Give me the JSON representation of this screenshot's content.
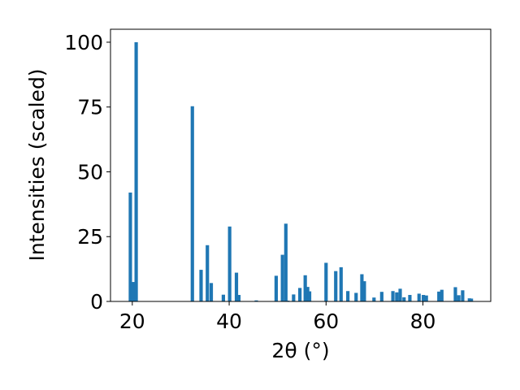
{
  "chart_data": {
    "type": "bar",
    "xlabel": "2θ (°)",
    "ylabel": "Intensities (scaled)",
    "xlim": [
      15.5,
      94
    ],
    "ylim": [
      0,
      105
    ],
    "x_ticks": [
      20,
      40,
      60,
      80
    ],
    "y_ticks": [
      0,
      25,
      50,
      75,
      100
    ],
    "grid": false,
    "bar_color": "#1f77b4",
    "bar_width": 0.7,
    "x": [
      19.6,
      20.2,
      20.8,
      32.4,
      34.2,
      35.5,
      36.3,
      38.8,
      40.1,
      41.5,
      42.0,
      45.6,
      49.7,
      51.0,
      51.7,
      52.1,
      53.3,
      54.6,
      55.7,
      56.2,
      56.6,
      60.0,
      62.0,
      63.1,
      64.5,
      66.2,
      67.4,
      67.9,
      69.9,
      71.5,
      73.8,
      74.6,
      75.3,
      76.1,
      77.3,
      79.2,
      80.1,
      80.7,
      83.3,
      83.9,
      86.7,
      87.4,
      88.2,
      89.6,
      90.0
    ],
    "values": [
      42,
      7.5,
      100,
      75.3,
      12.2,
      21.7,
      7.1,
      2.6,
      28.9,
      11.1,
      2.5,
      0.4,
      9.9,
      18.0,
      30.0,
      0.3,
      2.7,
      5.2,
      10.1,
      5.6,
      3.9,
      14.9,
      11.7,
      13.2,
      4.0,
      3.3,
      10.5,
      7.8,
      1.5,
      3.7,
      4.0,
      3.5,
      4.9,
      1.6,
      2.5,
      3.0,
      2.5,
      2.3,
      3.8,
      4.5,
      5.5,
      2.4,
      4.3,
      1.2,
      1.1
    ]
  }
}
